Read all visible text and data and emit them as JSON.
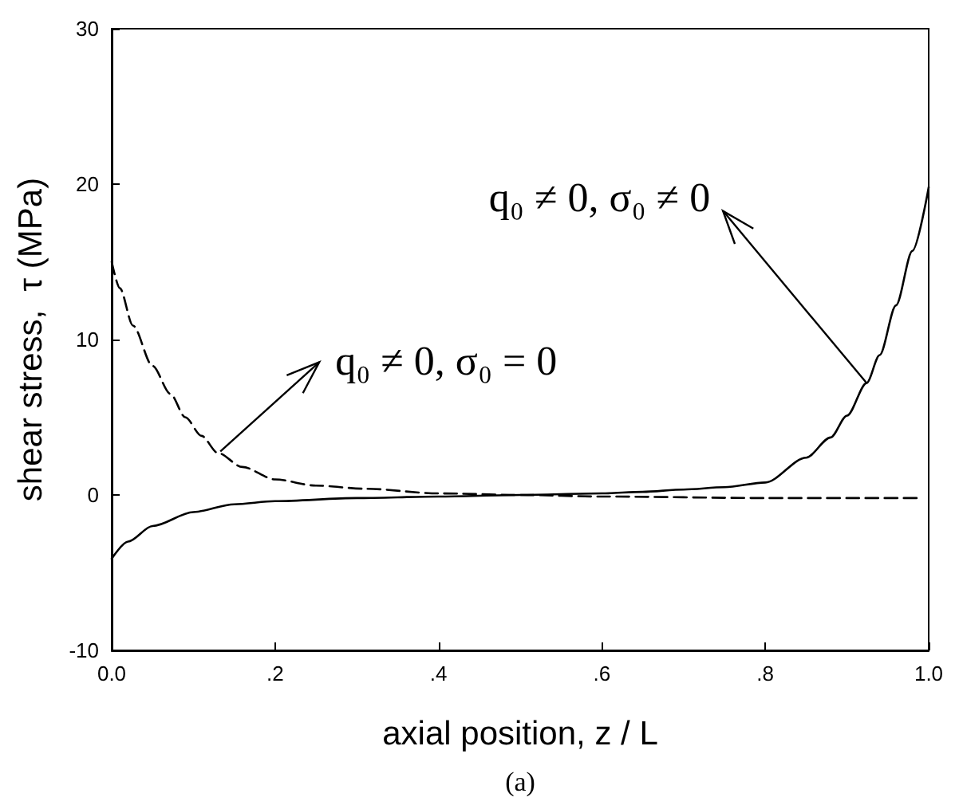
{
  "chart_data": {
    "type": "line",
    "xlabel": "axial position, z / L",
    "ylabel": "shear stress,  τ (MPa)",
    "xlim": [
      0,
      1
    ],
    "ylim": [
      -10,
      30
    ],
    "xticks": [
      {
        "value": 0,
        "label": "0.0"
      },
      {
        "value": 0.2,
        "label": ".2"
      },
      {
        "value": 0.4,
        "label": ".4"
      },
      {
        "value": 0.6,
        "label": ".6"
      },
      {
        "value": 0.8,
        "label": ".8"
      },
      {
        "value": 1,
        "label": "1.0"
      }
    ],
    "yticks": [
      -10,
      0,
      10,
      20,
      30
    ],
    "grid": false,
    "marker": "none",
    "series": [
      {
        "color": "#000000",
        "line_style": "dashed",
        "x": [
          0,
          0.01,
          0.026,
          0.05,
          0.072,
          0.09,
          0.11,
          0.13,
          0.16,
          0.2,
          0.25,
          0.31,
          0.4,
          0.5,
          0.6,
          0.8,
          0.99
        ],
        "values": [
          15,
          13.3,
          10.9,
          8.3,
          6.5,
          5,
          3.8,
          2.7,
          1.8,
          1,
          0.6,
          0.4,
          0.1,
          0,
          -0.1,
          -0.2,
          -0.2
        ]
      },
      {
        "color": "#000000",
        "line_style": "solid",
        "x": [
          0,
          0.02,
          0.05,
          0.1,
          0.15,
          0.2,
          0.3,
          0.4,
          0.5,
          0.6,
          0.65,
          0.7,
          0.75,
          0.8,
          0.85,
          0.88,
          0.9,
          0.924,
          0.94,
          0.96,
          0.98,
          1
        ],
        "values": [
          -4.1,
          -3,
          -2,
          -1.1,
          -0.6,
          -0.4,
          -0.2,
          -0.1,
          0,
          0.1,
          0.2,
          0.35,
          0.5,
          0.8,
          2.4,
          3.7,
          5.1,
          7.2,
          9,
          12.2,
          15.7,
          19.8
        ]
      }
    ],
    "annotations": [
      {
        "text": "q₀ ≠ 0, σ₀ = 0",
        "x": 0.133,
        "y": 2.8
      },
      {
        "text": "q₀ ≠ 0, σ₀ ≠ 0",
        "x": 0.924,
        "y": 7.2
      },
      "(a)"
    ]
  }
}
